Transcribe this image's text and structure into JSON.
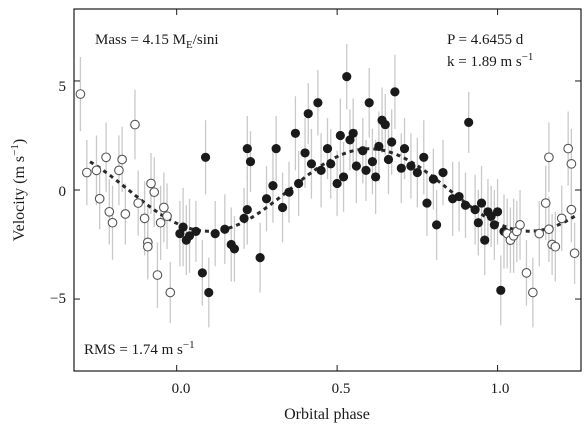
{
  "chart_data": {
    "type": "scatter",
    "title": "",
    "xlabel": "Orbital phase",
    "ylabel_main": "Velocity (m s",
    "ylabel_sup": "−1",
    "ylabel_end": ")",
    "xlim": [
      -0.32,
      1.26
    ],
    "ylim": [
      -8.3,
      8.3
    ],
    "x_ticks": [
      0.0,
      0.5,
      1.0
    ],
    "x_tick_labels": [
      "0.0",
      "0.5",
      "1.0"
    ],
    "y_ticks": [
      -5,
      0,
      5
    ],
    "y_tick_labels": [
      "−5",
      "0",
      "5"
    ],
    "grid": false,
    "legend": "none",
    "annotations": {
      "mass_prefix": "Mass = 4.15 M",
      "mass_sub": "E",
      "mass_suffix": "/sini",
      "period": "P = 4.6455 d",
      "k_main": "k = 1.89 m s",
      "k_sup": "−1",
      "rms_main": "RMS = 1.74 m s",
      "rms_sup": "−1"
    },
    "fit_curve": {
      "amplitude": 1.89,
      "phase_of_maximum": 0.6,
      "offset": 0.0
    },
    "colors": {
      "filled": "#1a1a1a",
      "open_stroke": "#555555",
      "errorbar": "#c9c9c9",
      "fit": "#2a2a2a"
    },
    "series": [
      {
        "marker": "filled",
        "points": [
          [
            0.01,
            -2.0,
            1.5
          ],
          [
            0.02,
            -1.7,
            1.8
          ],
          [
            0.03,
            -2.3,
            1.6
          ],
          [
            0.04,
            -2.1,
            1.7
          ],
          [
            0.06,
            -1.9,
            1.4
          ],
          [
            0.08,
            -3.8,
            1.5
          ],
          [
            0.09,
            1.5,
            1.7
          ],
          [
            0.1,
            -4.7,
            1.6
          ],
          [
            0.12,
            -2.0,
            1.5
          ],
          [
            0.15,
            -1.8,
            1.6
          ],
          [
            0.17,
            -2.5,
            1.7
          ],
          [
            0.18,
            -2.7,
            1.5
          ],
          [
            0.21,
            -1.3,
            1.4
          ],
          [
            0.22,
            -0.9,
            1.6
          ],
          [
            0.22,
            1.9,
            1.5
          ],
          [
            0.23,
            1.3,
            1.4
          ],
          [
            0.26,
            -3.1,
            1.6
          ],
          [
            0.28,
            -0.4,
            1.5
          ],
          [
            0.3,
            0.2,
            1.7
          ],
          [
            0.31,
            1.9,
            1.5
          ],
          [
            0.33,
            -0.8,
            1.6
          ],
          [
            0.35,
            -0.1,
            1.4
          ],
          [
            0.37,
            2.6,
            1.7
          ],
          [
            0.38,
            0.3,
            1.5
          ],
          [
            0.4,
            1.7,
            1.6
          ],
          [
            0.41,
            3.5,
            1.4
          ],
          [
            0.42,
            1.2,
            1.6
          ],
          [
            0.44,
            4.0,
            1.5
          ],
          [
            0.45,
            0.9,
            1.7
          ],
          [
            0.47,
            1.9,
            1.4
          ],
          [
            0.48,
            1.2,
            1.6
          ],
          [
            0.5,
            0.3,
            1.5
          ],
          [
            0.51,
            2.5,
            1.7
          ],
          [
            0.52,
            0.6,
            1.6
          ],
          [
            0.53,
            5.2,
            1.5
          ],
          [
            0.54,
            2.3,
            1.4
          ],
          [
            0.55,
            2.6,
            1.6
          ],
          [
            0.56,
            1.1,
            1.7
          ],
          [
            0.58,
            1.8,
            1.5
          ],
          [
            0.59,
            0.9,
            1.4
          ],
          [
            0.6,
            4.0,
            1.6
          ],
          [
            0.61,
            1.3,
            1.5
          ],
          [
            0.62,
            0.6,
            1.7
          ],
          [
            0.63,
            2.0,
            1.6
          ],
          [
            0.64,
            3.2,
            1.5
          ],
          [
            0.65,
            3.0,
            1.4
          ],
          [
            0.66,
            1.4,
            1.6
          ],
          [
            0.67,
            2.2,
            1.5
          ],
          [
            0.68,
            4.5,
            1.7
          ],
          [
            0.7,
            1.0,
            1.6
          ],
          [
            0.71,
            1.9,
            1.4
          ],
          [
            0.73,
            1.1,
            1.5
          ],
          [
            0.75,
            0.8,
            1.6
          ],
          [
            0.77,
            1.5,
            1.7
          ],
          [
            0.78,
            -0.6,
            1.5
          ],
          [
            0.8,
            0.5,
            1.4
          ],
          [
            0.81,
            -1.6,
            1.6
          ],
          [
            0.83,
            0.8,
            1.5
          ],
          [
            0.86,
            -0.4,
            1.7
          ],
          [
            0.88,
            -0.3,
            1.6
          ],
          [
            0.9,
            -0.7,
            1.5
          ],
          [
            0.91,
            3.1,
            1.4
          ],
          [
            0.93,
            -0.9,
            1.6
          ],
          [
            0.94,
            -1.5,
            1.5
          ],
          [
            0.95,
            -0.6,
            1.7
          ],
          [
            0.96,
            -2.3,
            1.6
          ],
          [
            0.97,
            -1.0,
            1.5
          ],
          [
            0.98,
            -1.2,
            1.4
          ],
          [
            0.99,
            -1.6,
            1.6
          ],
          [
            1.0,
            -1.0,
            1.5
          ],
          [
            1.01,
            -4.6,
            1.6
          ],
          [
            1.02,
            -1.9,
            1.7
          ]
        ]
      },
      {
        "marker": "open",
        "points": [
          [
            -0.3,
            4.4,
            1.7
          ],
          [
            -0.28,
            0.8,
            1.5
          ],
          [
            -0.25,
            0.9,
            1.6
          ],
          [
            -0.24,
            -0.4,
            1.4
          ],
          [
            -0.22,
            1.5,
            1.6
          ],
          [
            -0.21,
            -1.0,
            1.5
          ],
          [
            -0.2,
            -1.5,
            1.7
          ],
          [
            -0.18,
            0.9,
            1.6
          ],
          [
            -0.17,
            1.4,
            1.5
          ],
          [
            -0.16,
            -1.1,
            1.4
          ],
          [
            -0.13,
            3.0,
            1.6
          ],
          [
            -0.12,
            -0.6,
            1.5
          ],
          [
            -0.1,
            -1.3,
            1.7
          ],
          [
            -0.09,
            -2.4,
            1.6
          ],
          [
            -0.09,
            -2.6,
            1.5
          ],
          [
            -0.08,
            0.3,
            1.4
          ],
          [
            -0.07,
            -0.1,
            1.6
          ],
          [
            -0.06,
            -3.9,
            1.5
          ],
          [
            -0.05,
            -1.5,
            1.7
          ],
          [
            -0.04,
            -0.8,
            1.6
          ],
          [
            -0.03,
            -1.2,
            1.5
          ],
          [
            -0.02,
            -4.7,
            1.4
          ],
          [
            1.03,
            -2.0,
            1.6
          ],
          [
            1.04,
            -2.3,
            1.5
          ],
          [
            1.05,
            -2.1,
            1.7
          ],
          [
            1.06,
            -1.9,
            1.4
          ],
          [
            1.07,
            -1.6,
            1.6
          ],
          [
            1.09,
            -3.8,
            1.5
          ],
          [
            1.11,
            -4.7,
            1.6
          ],
          [
            1.13,
            -2.0,
            1.5
          ],
          [
            1.15,
            -0.6,
            1.7
          ],
          [
            1.16,
            1.5,
            1.6
          ],
          [
            1.16,
            -1.8,
            1.5
          ],
          [
            1.17,
            -2.5,
            1.4
          ],
          [
            1.18,
            -2.6,
            1.6
          ],
          [
            1.2,
            -1.3,
            1.5
          ],
          [
            1.22,
            1.9,
            1.7
          ],
          [
            1.23,
            1.2,
            1.6
          ],
          [
            1.23,
            -0.9,
            1.5
          ],
          [
            1.24,
            -2.9,
            1.4
          ]
        ]
      }
    ]
  }
}
